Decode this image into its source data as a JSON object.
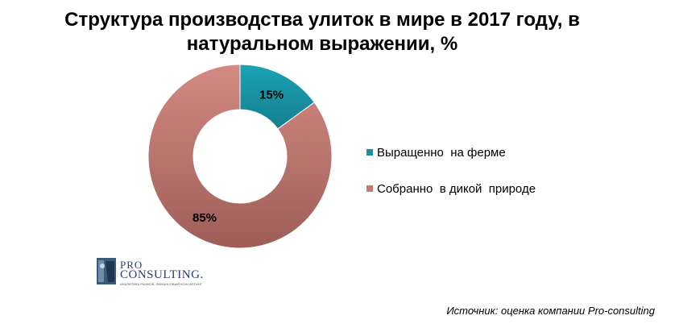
{
  "title_lines": [
    "Структура  производства улиток в мире в 2017 году, в",
    "натуральном выражении, %"
  ],
  "chart_data": {
    "type": "pie",
    "donut": true,
    "categories": [
      "Выращенно  на ферме",
      "Собранно  в дикой  природе"
    ],
    "values": [
      15,
      85
    ],
    "labels": [
      "15%",
      "85%"
    ],
    "colors": [
      "#1c8ea0",
      "#c47a72"
    ],
    "title": "Структура  производства улиток в мире в 2017 году, в натуральном выражении, %",
    "legend_position": "right"
  },
  "legend": [
    {
      "label": "Выращенно  на ферме",
      "color": "#1c8ea0"
    },
    {
      "label": "Собранно  в дикой  природе",
      "color": "#c47a72"
    }
  ],
  "logo": {
    "line1": "PRO",
    "line2": "CONSULTING.",
    "tagline": "АНАЛИТИКА РЫНКОВ, ФИНАНСОВЫЙ КОНСАЛТИНГ"
  },
  "source": "Источник: оценка компании Pro-consulting"
}
